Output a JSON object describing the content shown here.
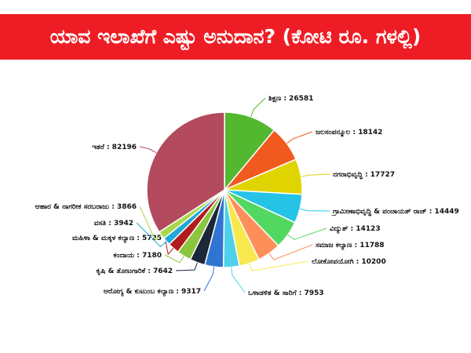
{
  "header": {
    "title": "ಯಾವ ಇಲಾಖೆಗೆ ಎಷ್ಟು ಅನುದಾನ? (ಕೋಟಿ ರೂ. ಗಳಲ್ಲಿ)"
  },
  "chart_data": {
    "type": "pie",
    "title": "ಯಾವ ಇಲಾಖೆಗೆ ಎಷ್ಟು ಅನುದಾನ? (ಕೋಟಿ ರೂ. ಗಳಲ್ಲಿ)",
    "slices": [
      {
        "label": "ಶಿಕ್ಷಣ",
        "value": 26581,
        "color": "#52b830",
        "text": "ಶಿಕ್ಷಣ : 26581"
      },
      {
        "label": "ಜಲಸಂಪನ್ಮೂಲ",
        "value": 18142,
        "color": "#f05a1e",
        "text": "ಜಲಸಂಪನ್ಮೂಲ : 18142"
      },
      {
        "label": "ನಗರಾಭಿವೃದ್ಧಿ",
        "value": 17727,
        "color": "#e0d400",
        "text": "ನಗರಾಭಿವೃದ್ಧಿ : 17727"
      },
      {
        "label": "ಗ್ರಾಮೀಣಾಭಿವೃದ್ಧಿ & ಪಂಚಾಯತ್ ರಾಜ್",
        "value": 14449,
        "color": "#25c3e6",
        "text": "ಗ್ರಾಮೀಣಾಭಿವೃದ್ಧಿ & ಪಂಚಾಯತ್ ರಾಜ್ : 14449"
      },
      {
        "label": "ವಿದ್ಯುತ್",
        "value": 14123,
        "color": "#52d860",
        "text": "ವಿದ್ಯುತ್ : 14123"
      },
      {
        "label": "ಸಮಾಜ ಕಲ್ಯಾಣ",
        "value": 11788,
        "color": "#ff8f5a",
        "text": "ಸಮಾಜ ಕಲ್ಯಾಣ : 11788"
      },
      {
        "label": "ಲೋಕೋಪಯೋಗಿ",
        "value": 10200,
        "color": "#f7e84e",
        "text": "ಲೋಕೋಪಯೋಗಿ : 10200"
      },
      {
        "label": "ಒಳಾಡಳಿತ & ಸಾರಿಗೆ",
        "value": 7953,
        "color": "#4fd0eb",
        "text": "ಒಳಾಡಳಿತ & ಸಾರಿಗೆ : 7953"
      },
      {
        "label": "ಆರೋಗ್ಯ & ಕುಟುಂಬ ಕಲ್ಯಾಣ",
        "value": 9317,
        "color": "#2f74d0",
        "text": "ಆರೋಗ್ಯ & ಕುಟುಂಬ ಕಲ್ಯಾಣ : 9317"
      },
      {
        "label": "ಕೃಷಿ & ತೋಟಗಾರಿಕೆ",
        "value": 7642,
        "color": "#1c2838",
        "text": "ಕೃಷಿ & ತೋಟಗಾರಿಕೆ : 7642"
      },
      {
        "label": "ಕಂದಾಯ",
        "value": 7180,
        "color": "#8cc63f",
        "text": "ಕಂದಾಯ : 7180"
      },
      {
        "label": "ಮಹಿಳಾ & ಮಕ್ಕಳ ಕಲ್ಯಾಣ",
        "value": 5725,
        "color": "#b01c1c",
        "text": "ಮಹಿಳಾ & ಮಕ್ಕಳ ಕಲ್ಯಾಣ : 5725"
      },
      {
        "label": "ವಸತಿ",
        "value": 3942,
        "color": "#1fa8d8",
        "text": "ವಸತಿ : 3942"
      },
      {
        "label": "ಆಹಾರ & ನಾಗರೀಕ ಸರಬರಾಜು",
        "value": 3866,
        "color": "#a8d84a",
        "text": "ಆಹಾರ & ನಾಗರೀಕ ಸರಬರಾಜು : 3866"
      },
      {
        "label": "ಇತರೆ",
        "value": 82196,
        "color": "#b34a5e",
        "text": "ಇತರೆ : 82196"
      }
    ]
  }
}
